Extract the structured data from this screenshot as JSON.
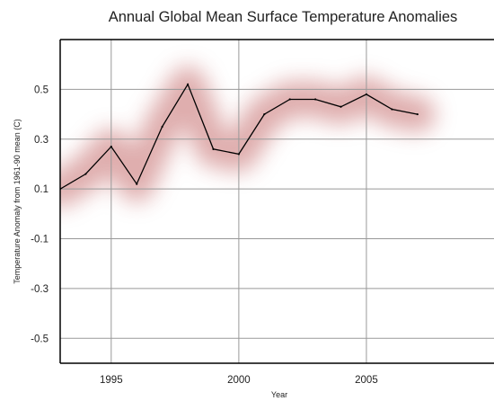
{
  "chart_data": {
    "type": "line",
    "title": "Annual Global Mean Surface Temperature Anomalies",
    "xlabel": "Year",
    "ylabel": "Temperature Anomaly from 1961-90 mean (C)",
    "xlim": [
      1993,
      2010
    ],
    "ylim": [
      -0.6,
      0.7
    ],
    "xticks": [
      1995,
      2000,
      2005
    ],
    "xtick_labels": [
      "1995",
      "2000",
      "2005"
    ],
    "yticks": [
      0.5,
      0.3,
      0.1,
      -0.1,
      -0.3,
      -0.5
    ],
    "ytick_labels": [
      "0.5",
      "0.3",
      "0.1",
      "-0.1",
      "-0.3",
      "-0.5"
    ],
    "grid": true,
    "legend": "none",
    "uncertainty_band": "diffuse red shading around the line",
    "series": [
      {
        "x": [
          1993,
          1994,
          1995,
          1996,
          1997,
          1998,
          1999,
          2000,
          2001,
          2002,
          2003,
          2004,
          2005,
          2006,
          2007
        ],
        "y": [
          0.1,
          0.16,
          0.27,
          0.12,
          0.35,
          0.52,
          0.26,
          0.24,
          0.4,
          0.46,
          0.46,
          0.43,
          0.48,
          0.42,
          0.4
        ]
      }
    ],
    "colors": {
      "line": "#000000",
      "grid": "#999999",
      "band": "#c46a6a"
    }
  }
}
